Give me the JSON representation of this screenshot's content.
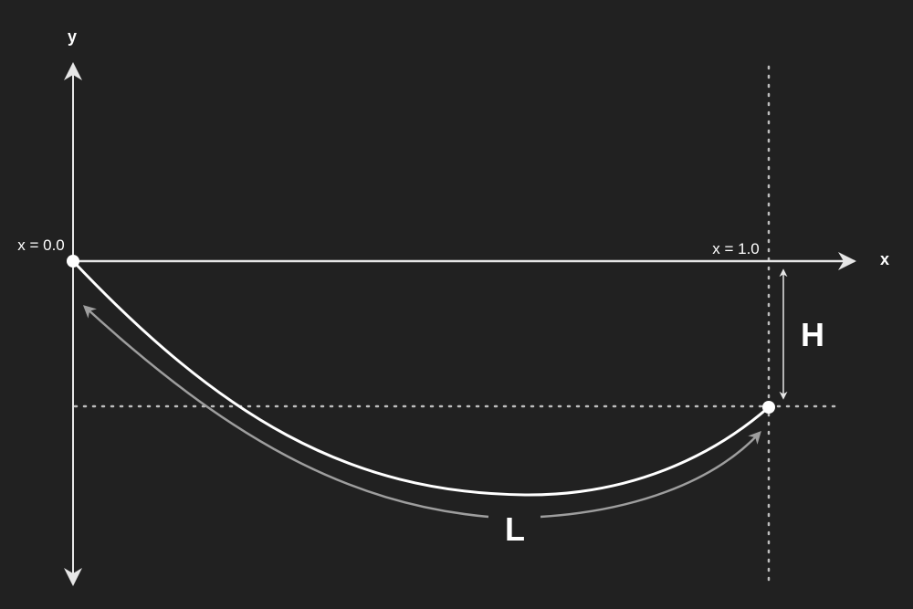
{
  "diagram": {
    "axis_labels": {
      "x": "x",
      "y": "y"
    },
    "point_labels": {
      "start": "x = 0.0",
      "end": "x = 1.0"
    },
    "dimension_labels": {
      "height": "H",
      "length": "L"
    },
    "colors": {
      "background": "#212121",
      "curve": "#ffffff",
      "axes": "#e6e6e6",
      "guides": "#bdbdbd",
      "arc_arrow": "#9e9e9e"
    }
  }
}
